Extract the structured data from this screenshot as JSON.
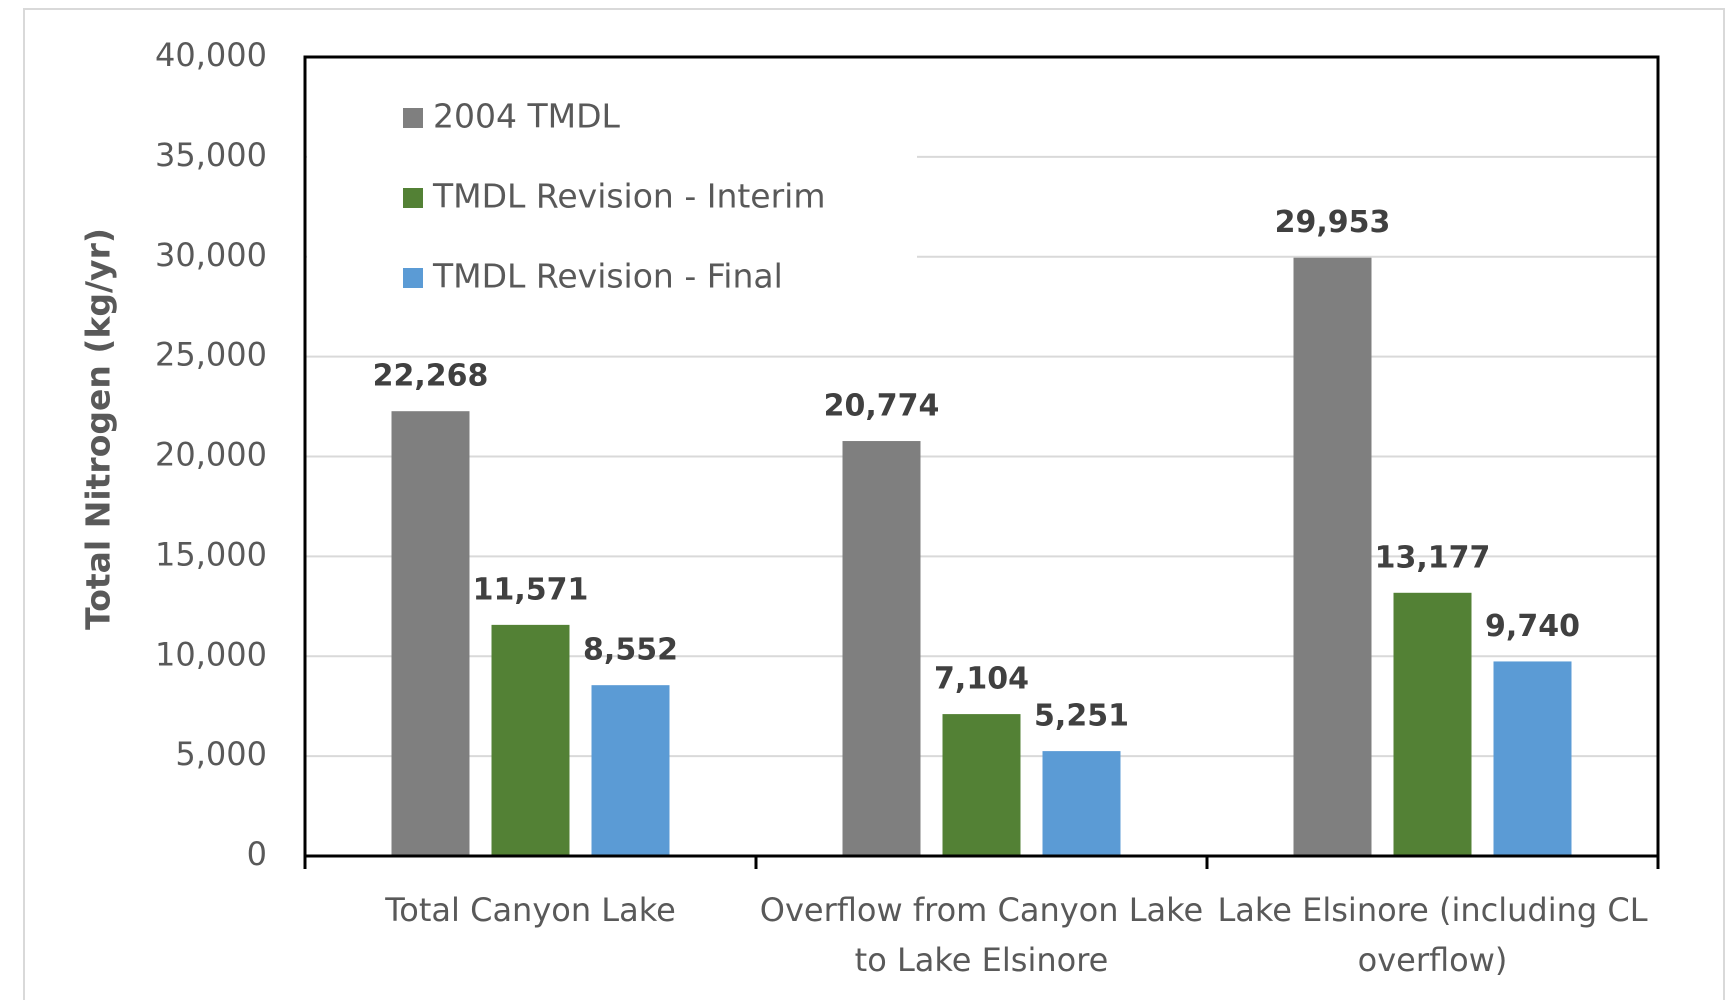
{
  "chart_data": {
    "type": "bar",
    "y_label": "Total Nitrogen (kg/yr)",
    "categories": [
      "Total Canyon Lake",
      "Overflow from Canyon Lake to Lake Elsinore",
      "Lake Elsinore (including CL overflow)"
    ],
    "series": [
      {
        "name": "2004 TMDL",
        "color": "#7f7f7f",
        "values": [
          22268,
          20774,
          29953
        ],
        "value_labels": [
          "22,268",
          "20,774",
          "29,953"
        ]
      },
      {
        "name": "TMDL Revision - Interim",
        "color": "#538135",
        "values": [
          11571,
          7104,
          13177
        ],
        "value_labels": [
          "11,571",
          "7,104",
          "13,177"
        ]
      },
      {
        "name": "TMDL Revision - Final",
        "color": "#5b9bd5",
        "values": [
          8552,
          5251,
          9740
        ],
        "value_labels": [
          "8,552",
          "5,251",
          "9,740"
        ]
      }
    ],
    "ylim": [
      0,
      40000
    ],
    "yticks": [
      0,
      {
        "value": 5000,
        "label": "5,000"
      },
      {
        "value": 10000,
        "label": "10,000"
      },
      {
        "value": 15000,
        "label": "15,000"
      },
      {
        "value": 20000,
        "label": "20,000"
      },
      {
        "value": 25000,
        "label": "25,000"
      },
      {
        "value": 30000,
        "label": "30,000"
      },
      {
        "value": 35000,
        "label": "35,000"
      },
      {
        "value": 40000,
        "label": "40,000"
      }
    ],
    "grid": true,
    "legend": "upper left"
  }
}
